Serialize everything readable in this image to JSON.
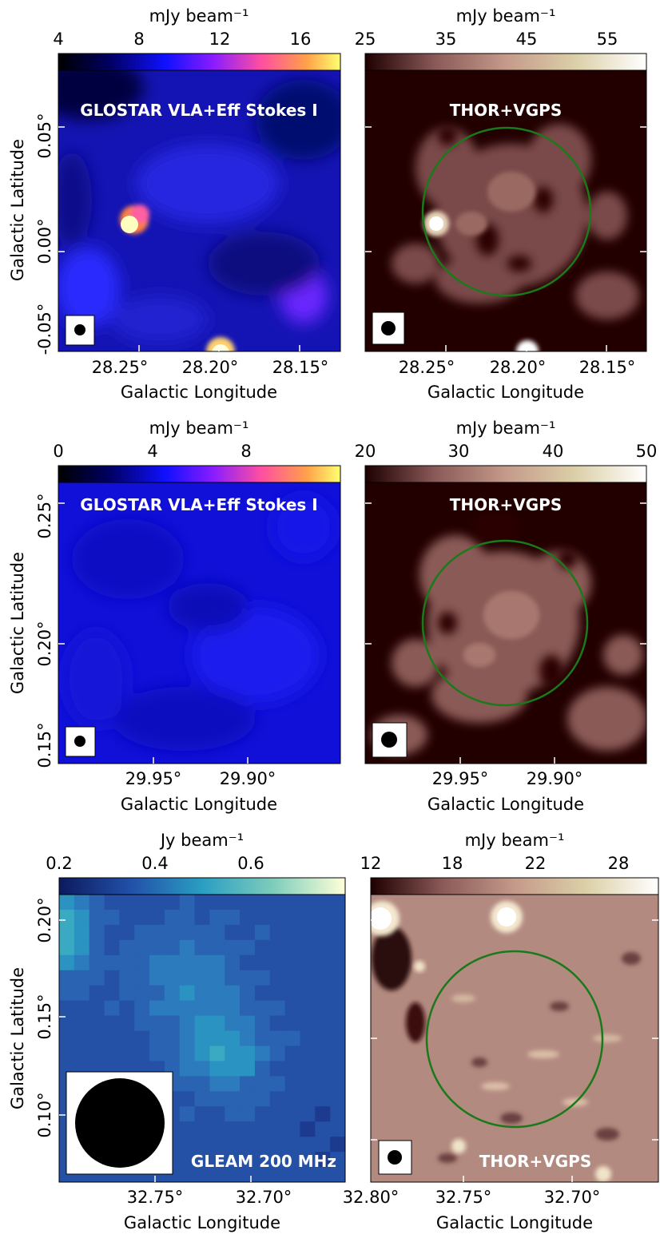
{
  "rows": [
    {
      "left": {
        "colorbar_label": "mJy beam⁻¹",
        "colorbar_ticks": [
          "4",
          "8",
          "12",
          "16"
        ],
        "title": "GLOSTAR VLA+Eff Stokes I",
        "xticks": [
          "28.25°",
          "28.20°",
          "28.15°"
        ],
        "yticks": [
          "0.05°",
          "0.00°",
          "-0.05°"
        ],
        "xlabel": "Galactic Longitude",
        "ylabel": "Galactic Latitude",
        "colormap": "gnuplot2"
      },
      "right": {
        "colorbar_label": "mJy beam⁻¹",
        "colorbar_ticks": [
          "25",
          "35",
          "45",
          "55"
        ],
        "title": "THOR+VGPS",
        "xticks": [
          "28.25°",
          "28.20°",
          "28.15°"
        ],
        "xlabel": "Galactic Longitude",
        "colormap": "pink",
        "circle_color": "#1a7a1a"
      }
    },
    {
      "left": {
        "colorbar_label": "mJy beam⁻¹",
        "colorbar_ticks": [
          "0",
          "4",
          "8"
        ],
        "title": "GLOSTAR VLA+Eff Stokes I",
        "xticks": [
          "29.95°",
          "29.90°"
        ],
        "yticks": [
          "0.25°",
          "0.20°",
          "0.15°"
        ],
        "xlabel": "Galactic Longitude",
        "ylabel": "Galactic Latitude",
        "colormap": "gnuplot2"
      },
      "right": {
        "colorbar_label": "mJy beam⁻¹",
        "colorbar_ticks": [
          "20",
          "30",
          "40",
          "50"
        ],
        "title": "THOR+VGPS",
        "xticks": [
          "29.95°",
          "29.90°"
        ],
        "xlabel": "Galactic Longitude",
        "colormap": "pink",
        "circle_color": "#1a7a1a"
      }
    },
    {
      "left": {
        "colorbar_label": "Jy beam⁻¹",
        "colorbar_ticks": [
          "0.2",
          "0.4",
          "0.6"
        ],
        "title": "GLEAM 200 MHz",
        "xticks": [
          "32.75°",
          "32.70°",
          "32.80°"
        ],
        "yticks": [
          "0.20°",
          "0.15°",
          "0.10°"
        ],
        "xlabel": "Galactic Longitude",
        "ylabel": "Galactic Latitude",
        "colormap": "YlGnBu_r"
      },
      "right": {
        "colorbar_label": "mJy beam⁻¹",
        "colorbar_ticks": [
          "12",
          "18",
          "22",
          "28"
        ],
        "title": "THOR+VGPS",
        "xticks": [
          "32.75°",
          "32.70°"
        ],
        "xlabel": "Galactic Longitude",
        "colormap": "pink",
        "circle_color": "#1a7a1a"
      }
    }
  ]
}
